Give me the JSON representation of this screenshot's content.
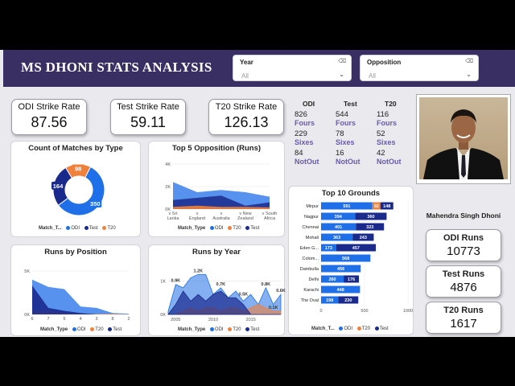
{
  "title": "MS DHONI STATS ANALYSIS",
  "filters": [
    {
      "label": "Year",
      "value": "All"
    },
    {
      "label": "Opposition",
      "value": "All"
    }
  ],
  "kpis": [
    {
      "label": "ODI Strike Rate",
      "value": "87.56"
    },
    {
      "label": "Test Strike Rate",
      "value": "59.11"
    },
    {
      "label": "T20 Strike Rate",
      "value": "126.13"
    }
  ],
  "format_stats": [
    {
      "format": "ODI",
      "fours": "826",
      "sixes": "229",
      "notout": "84"
    },
    {
      "format": "Test",
      "fours": "544",
      "sixes": "78",
      "notout": "16"
    },
    {
      "format": "T20",
      "fours": "116",
      "sixes": "52",
      "notout": "42"
    }
  ],
  "stat_labels": {
    "fours": "Fours",
    "sixes": "Sixes",
    "notout": "NotOut"
  },
  "player": {
    "name": "Mahendra Singh Dhoni"
  },
  "runs_cards": [
    {
      "label": "ODI Runs",
      "value": "10773"
    },
    {
      "label": "Test Runs",
      "value": "4876"
    },
    {
      "label": "T20 Runs",
      "value": "1617"
    }
  ],
  "colors": {
    "odi": "#1f6fe8",
    "test": "#1a2a8c",
    "t20": "#f0813a",
    "header": "#3a2f62"
  },
  "legend_labels": {
    "match_type": "Match_Type",
    "match_type_short": "Match_T...",
    "odi": "ODI",
    "test": "Test",
    "t20": "T20"
  },
  "chart_data": [
    {
      "type": "pie",
      "title": "Count of Matches by Type",
      "legend_title": "Match_T...",
      "slices": [
        {
          "name": "ODI",
          "value": 350,
          "color": "#1f6fe8"
        },
        {
          "name": "Test",
          "value": 164,
          "color": "#1a2a8c"
        },
        {
          "name": "T20",
          "value": 98,
          "color": "#f0813a"
        }
      ]
    },
    {
      "type": "area",
      "title": "Top 5 Opposition (Runs)",
      "legend_title": "Match_Type",
      "categories": [
        "v Sri Lanka",
        "v England",
        "v Australia",
        "v New Zealand",
        "v South Africa"
      ],
      "category_lines": [
        [
          "v Sri",
          "Lanka"
        ],
        [
          "v",
          "England"
        ],
        [
          "v",
          "Australia"
        ],
        [
          "v New",
          "Zealand"
        ],
        [
          "v South",
          "Africa"
        ]
      ],
      "yticks": [
        "4K",
        "2K",
        "0K"
      ],
      "ylim": [
        0,
        4000
      ],
      "series": [
        {
          "name": "ODI",
          "values": [
            2400,
            1500,
            1700,
            1500,
            1100
          ]
        },
        {
          "name": "Test",
          "values": [
            800,
            1000,
            1200,
            300,
            600
          ]
        },
        {
          "name": "T20",
          "values": [
            200,
            300,
            200,
            200,
            150
          ]
        }
      ]
    },
    {
      "type": "area",
      "title": "Runs by Position",
      "legend_title": "Match_Type",
      "categories": [
        "6",
        "7",
        "5",
        "4",
        "3",
        "8",
        "2"
      ],
      "yticks": [
        "5K",
        "0K"
      ],
      "ylim": [
        0,
        6000
      ],
      "series": [
        {
          "name": "ODI",
          "values": [
            4800,
            3800,
            3500,
            1100,
            900,
            200,
            100
          ]
        },
        {
          "name": "T20",
          "values": [
            400,
            500,
            200,
            100,
            50,
            100,
            0
          ]
        },
        {
          "name": "Test",
          "values": [
            4000,
            900,
            500,
            200,
            0,
            0,
            0
          ]
        }
      ]
    },
    {
      "type": "line",
      "title": "Runs by Year",
      "legend_title": "Match_Type",
      "xticks": [
        "2005",
        "2010",
        "2015"
      ],
      "yticks": [
        "1K",
        "0K"
      ],
      "ylim": [
        0,
        1400
      ],
      "labels": [
        "0.9K",
        "1.2K",
        "0.7K",
        "0.5K",
        "0.8K",
        "0.6K",
        "0.1K"
      ],
      "x": [
        2004,
        2005,
        2006,
        2007,
        2008,
        2009,
        2010,
        2011,
        2012,
        2013,
        2014,
        2015,
        2016,
        2017,
        2018,
        2019
      ],
      "series": [
        {
          "name": "ODI",
          "values": [
            100,
            900,
            800,
            1100,
            1200,
            1200,
            600,
            800,
            500,
            700,
            400,
            600,
            300,
            800,
            300,
            600
          ]
        },
        {
          "name": "T20",
          "values": [
            0,
            0,
            100,
            200,
            100,
            200,
            200,
            100,
            200,
            200,
            100,
            200,
            300,
            200,
            100,
            100
          ]
        },
        {
          "name": "Test",
          "values": [
            0,
            300,
            700,
            400,
            600,
            400,
            600,
            700,
            500,
            500,
            300,
            0,
            0,
            0,
            0,
            0
          ]
        }
      ]
    },
    {
      "type": "bar",
      "orientation": "horizontal",
      "stacked": true,
      "title": "Top 10 Grounds",
      "legend_title": "Match_T...",
      "categories": [
        "Mirpur",
        "Nagpur",
        "Chennai",
        "Mohali",
        "Eden G...",
        "Colom...",
        "Dambulla",
        "Delhi",
        "Karachi",
        "The Oval"
      ],
      "xticks": [
        "0",
        "500",
        "1000"
      ],
      "xlim": [
        0,
        1000
      ],
      "series": [
        {
          "name": "ODI",
          "values": [
            591,
            394,
            401,
            363,
            173,
            568,
            456,
            260,
            448,
            198
          ]
        },
        {
          "name": "T20",
          "values": [
            92,
            0,
            0,
            0,
            0,
            0,
            0,
            0,
            0,
            0
          ]
        },
        {
          "name": "Test",
          "values": [
            148,
            360,
            323,
            243,
            457,
            0,
            0,
            176,
            0,
            230
          ]
        }
      ]
    }
  ]
}
